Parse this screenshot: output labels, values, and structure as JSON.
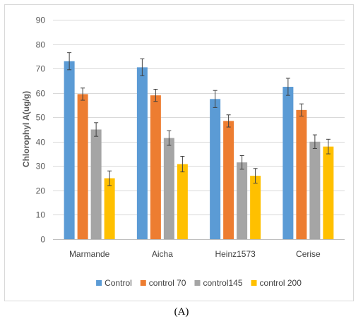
{
  "chart_data": {
    "type": "bar",
    "title": "",
    "xlabel": "",
    "ylabel": "Chlorophyl A(ug/g)",
    "ylim": [
      0,
      90
    ],
    "yticks": [
      0,
      10,
      20,
      30,
      40,
      50,
      60,
      70,
      80,
      90
    ],
    "grid": true,
    "legend_position": "bottom",
    "error_bars": true,
    "categories": [
      "Marmande",
      "Aicha",
      "Heinz1573",
      "Cerise"
    ],
    "series": [
      {
        "name": "Control",
        "color": "#5b9bd5",
        "values": [
          73,
          70.5,
          57.5,
          62.5
        ],
        "errors": [
          3.5,
          3.5,
          3.5,
          3.5
        ]
      },
      {
        "name": "control 70",
        "color": "#ed7d31",
        "values": [
          59.5,
          59,
          48.5,
          53
        ],
        "errors": [
          2.5,
          2.5,
          2.5,
          2.5
        ]
      },
      {
        "name": "control145",
        "color": "#a5a5a5",
        "values": [
          45,
          41.5,
          31.5,
          40
        ],
        "errors": [
          2.8,
          3,
          2.8,
          2.8
        ]
      },
      {
        "name": "control 200",
        "color": "#ffc000",
        "values": [
          25,
          30.8,
          26,
          38
        ],
        "errors": [
          3,
          3.2,
          3,
          3
        ]
      }
    ]
  },
  "caption": "(A)"
}
